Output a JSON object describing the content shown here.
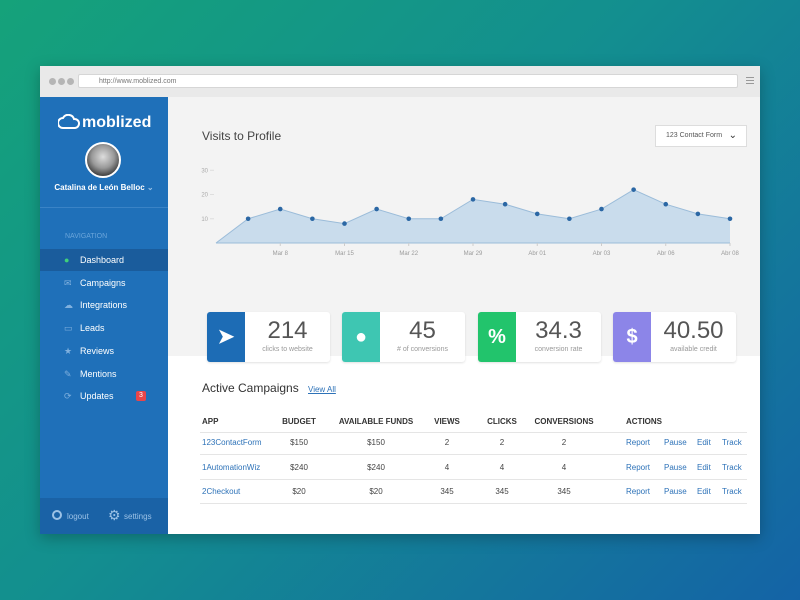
{
  "browser": {
    "url": "http://www.moblized.com"
  },
  "sidebar": {
    "logo": "moblized",
    "user": "Catalina de León Belloc",
    "nav_heading": "NAVIGATION",
    "nav": [
      "Dashboard",
      "Campaigns",
      "Integrations",
      "Leads",
      "Reviews",
      "Mentions",
      "Updates"
    ],
    "updates_badge": 3,
    "logout": "logout",
    "settings": "settings"
  },
  "chart_data": {
    "type": "area",
    "title": "Visits to Profile",
    "dropdown": "123 Contact Form",
    "categories": [
      null,
      null,
      "Mar 8",
      null,
      "Mar 15",
      null,
      "Mar 22",
      null,
      "Mar 29",
      null,
      "Abr 01",
      null,
      "Abr 03",
      null,
      "Abr 06",
      null,
      "Abr 08"
    ],
    "values": [
      0,
      10,
      14,
      10,
      8,
      14,
      10,
      10,
      18,
      16,
      12,
      10,
      14,
      22,
      16,
      12,
      10
    ],
    "ylim": [
      0,
      33
    ],
    "yticks": [
      10,
      20,
      30
    ],
    "color": "#c9dcec",
    "line_color": "#9bbcd9",
    "point_color": "#2b67a4"
  },
  "stats": [
    {
      "value": 214,
      "label": "clicks to website"
    },
    {
      "value": 45,
      "label": "# of conversions"
    },
    {
      "value": 34.3,
      "label": "conversion rate"
    },
    {
      "value": "40.50",
      "label": "available credit"
    }
  ],
  "campaigns": {
    "title": "Active Campaigns",
    "view_all": "View All",
    "headers": [
      "APP",
      "BUDGET",
      "AVAILABLE FUNDS",
      "VIEWS",
      "CLICKS",
      "CONVERSIONS",
      "ACTIONS"
    ],
    "rows": [
      [
        "123ContactForm",
        "$150",
        "$150",
        2,
        2,
        2
      ],
      [
        "1AutomationWiz",
        "$240",
        "$240",
        4,
        4,
        4
      ],
      [
        "2Checkout",
        "$20",
        "$20",
        345,
        345,
        345
      ]
    ],
    "actions": [
      "Report",
      "Pause",
      "Edit",
      "Track"
    ]
  }
}
